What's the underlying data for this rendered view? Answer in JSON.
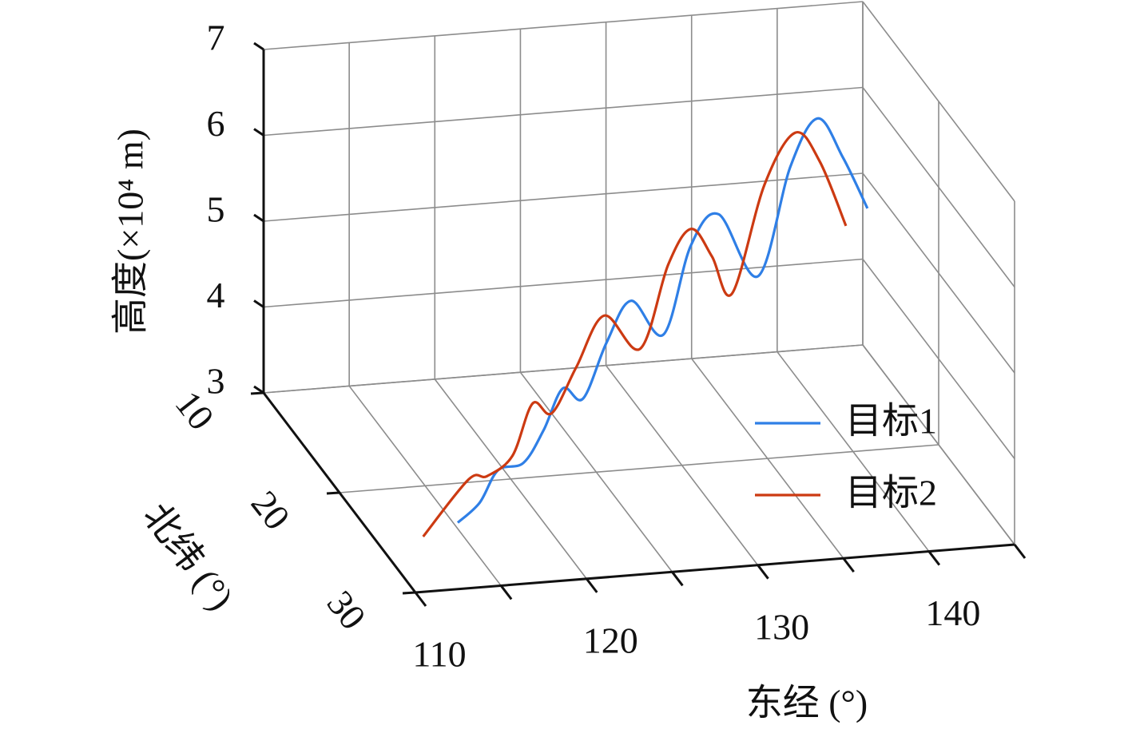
{
  "chart_data": {
    "type": "line3d",
    "xlabel": "东经 (°)",
    "ylabel": "北纬 (°)",
    "zlabel": "高度(×10⁴ m)",
    "xlim": [
      110,
      145
    ],
    "xticks": [
      110,
      120,
      130,
      140
    ],
    "xminorticks": [
      115,
      125,
      135,
      145
    ],
    "ylim": [
      10,
      30
    ],
    "yticks": [
      10,
      20,
      30
    ],
    "zlim": [
      3,
      7
    ],
    "zticks": [
      3,
      4,
      5,
      6,
      7
    ],
    "grid": true,
    "legend": "lower right",
    "series": [
      {
        "name": "目标1",
        "color": "#2f7fe6",
        "x": [
          115.4,
          116.9,
          118.2,
          119.9,
          121.3,
          122.6,
          124.0,
          125.6,
          127.3,
          129.5,
          131.4,
          133.3,
          136.0,
          138.2,
          140.1,
          141.8,
          143.5
        ],
        "y": [
          23.4,
          22.9,
          22.4,
          21.9,
          21.4,
          21.0,
          20.5,
          20.0,
          19.4,
          18.7,
          18.0,
          17.4,
          16.5,
          15.8,
          15.1,
          14.6,
          14.0
        ],
        "z": [
          2.96,
          3.11,
          3.41,
          3.41,
          3.71,
          4.13,
          3.93,
          4.5,
          4.89,
          4.38,
          5.3,
          5.57,
          4.7,
          5.86,
          6.31,
          5.77,
          5.08
        ]
      },
      {
        "name": "目标2",
        "color": "#cc3a12",
        "x": [
          112.8,
          115.9,
          117.2,
          118.9,
          120.3,
          121.6,
          123.3,
          125.2,
          127.7,
          129.6,
          131.2,
          132.6,
          134.0,
          136.2,
          138.3,
          140.0,
          141.8
        ],
        "y": [
          24.7,
          23.7,
          23.2,
          22.7,
          22.2,
          21.8,
          21.2,
          20.6,
          19.7,
          19.1,
          18.5,
          18.1,
          17.6,
          16.9,
          16.2,
          15.6,
          15.0
        ],
        "z": [
          2.99,
          3.49,
          3.45,
          3.6,
          4.13,
          3.95,
          4.39,
          4.89,
          4.36,
          5.24,
          5.56,
          5.17,
          4.66,
          5.81,
          6.3,
          5.87,
          5.02
        ]
      }
    ]
  }
}
